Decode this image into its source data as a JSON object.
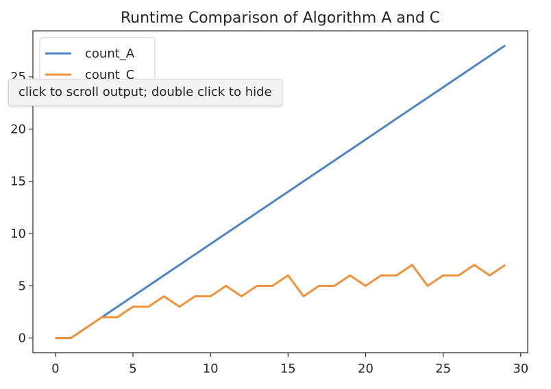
{
  "tooltip": {
    "text": "click to scroll output; double click to hide"
  },
  "chart_data": {
    "type": "line",
    "title": "Runtime Comparison of Algorithm A and C",
    "xlabel": "",
    "ylabel": "",
    "x": [
      0,
      1,
      2,
      3,
      4,
      5,
      6,
      7,
      8,
      9,
      10,
      11,
      12,
      13,
      14,
      15,
      16,
      17,
      18,
      19,
      20,
      21,
      22,
      23,
      24,
      25,
      26,
      27,
      28,
      29
    ],
    "series": [
      {
        "name": "count_A",
        "color": "#4c84c4",
        "values": [
          0,
          0,
          1,
          2,
          3,
          4,
          5,
          6,
          7,
          8,
          9,
          10,
          11,
          12,
          13,
          14,
          15,
          16,
          17,
          18,
          19,
          20,
          21,
          22,
          23,
          24,
          25,
          26,
          27,
          28
        ]
      },
      {
        "name": "count_C",
        "color": "#f0923a",
        "values": [
          0,
          0,
          1,
          2,
          2,
          3,
          3,
          4,
          3,
          4,
          4,
          5,
          4,
          5,
          5,
          6,
          4,
          5,
          5,
          6,
          5,
          6,
          6,
          7,
          5,
          6,
          6,
          7,
          6,
          7
        ]
      }
    ],
    "xlim": [
      -1.45,
      30.45
    ],
    "ylim": [
      -1.4,
      29.4
    ],
    "xticks": [
      0,
      5,
      10,
      15,
      20,
      25,
      30
    ],
    "yticks": [
      0,
      5,
      10,
      15,
      20,
      25
    ],
    "grid": false,
    "legend": "upper left"
  }
}
